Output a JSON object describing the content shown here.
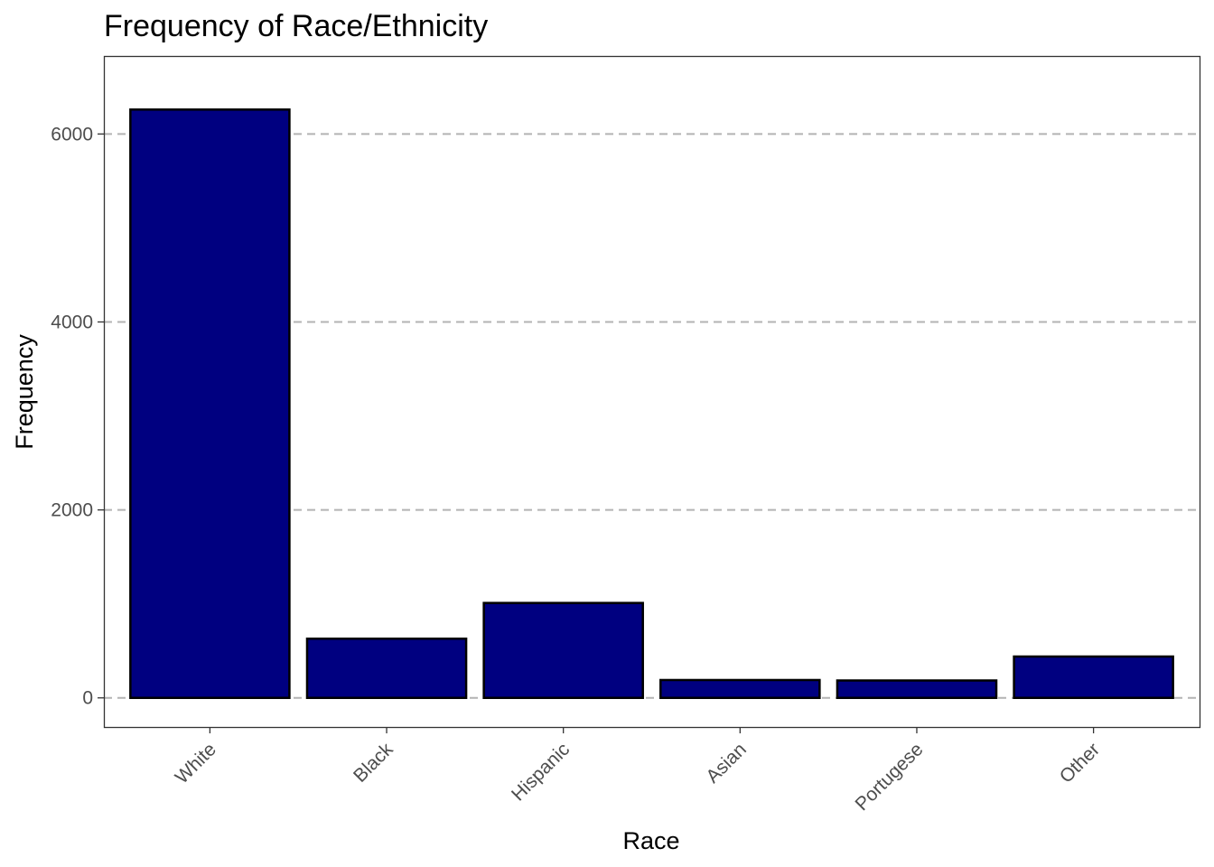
{
  "chart_data": {
    "type": "bar",
    "title": "Frequency of Race/Ethnicity",
    "xlabel": "Race",
    "ylabel": "Frequency",
    "categories": [
      "White",
      "Black",
      "Hispanic",
      "Asian",
      "Portugese",
      "Other"
    ],
    "values": [
      6260,
      630,
      1010,
      190,
      185,
      440
    ],
    "ylim": [
      -310,
      6830
    ],
    "yticks": [
      0,
      2000,
      4000,
      6000
    ],
    "ytick_labels": [
      "0",
      "2000",
      "4000",
      "6000"
    ],
    "grid": "horizontal-dashed",
    "legend": "none",
    "bar_color": "#000080",
    "bar_border_color": "#000000",
    "grid_color": "#b3b3b3"
  }
}
